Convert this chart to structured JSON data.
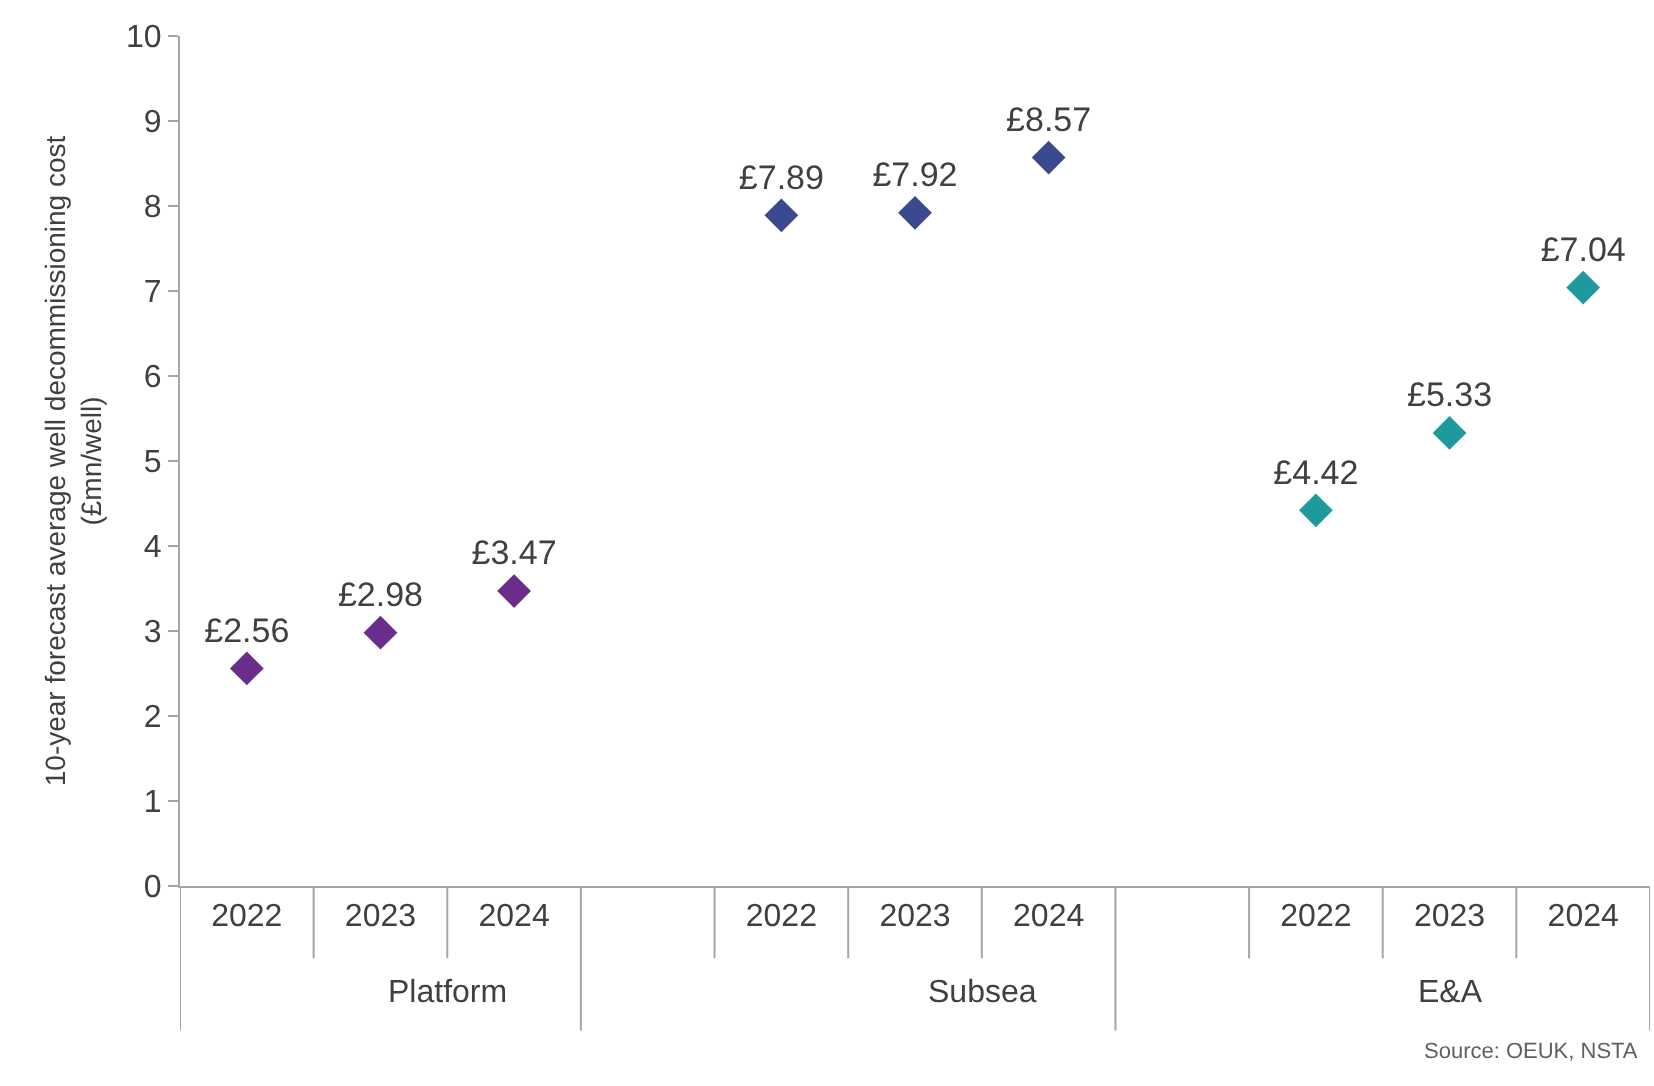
{
  "chart_data": {
    "type": "scatter",
    "ylabel": "10-year forecast average well decommissioning cost (£mn/well)",
    "categories": [
      "2022",
      "2023",
      "2024",
      null,
      "2022",
      "2023",
      "2024",
      null,
      "2022",
      "2023",
      "2024"
    ],
    "series": [
      {
        "color": "#6b2d8c",
        "values": [
          2.56,
          2.98,
          3.47,
          null,
          null,
          null,
          null,
          null,
          null,
          null,
          null
        ],
        "value_labels": [
          "£2.56",
          "£2.98",
          "£3.47",
          null,
          null,
          null,
          null,
          null,
          null,
          null,
          null
        ]
      },
      {
        "color": "#3b4a8e",
        "values": [
          null,
          null,
          null,
          null,
          7.89,
          7.92,
          8.57,
          null,
          null,
          null,
          null
        ],
        "value_labels": [
          null,
          null,
          null,
          null,
          "£7.89",
          "£7.92",
          "£8.57",
          null,
          null,
          null,
          null
        ]
      },
      {
        "color": "#1f9a9c",
        "values": [
          null,
          null,
          null,
          null,
          null,
          null,
          null,
          null,
          4.42,
          5.33,
          7.04
        ],
        "value_labels": [
          null,
          null,
          null,
          null,
          null,
          null,
          null,
          null,
          "£4.42",
          "£5.33",
          "£7.04"
        ]
      }
    ],
    "annotations": [
      "Platform",
      "Subsea",
      "E&A",
      "Source: OEUK, NSTA"
    ],
    "ylim": [
      0,
      10
    ],
    "yticks": [
      0,
      1,
      2,
      3,
      4,
      5,
      6,
      7,
      8,
      9,
      10
    ],
    "marker": "diamond"
  }
}
